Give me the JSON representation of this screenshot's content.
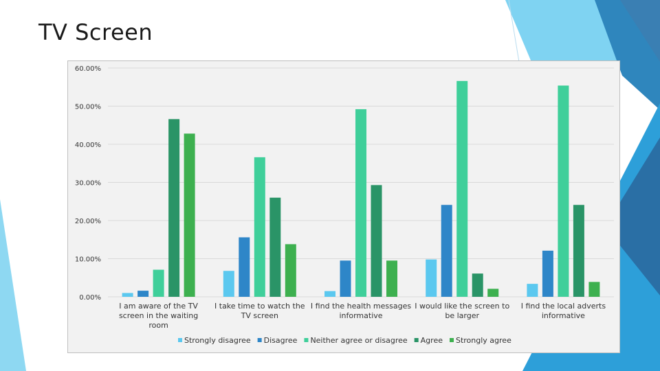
{
  "slide": {
    "title": "TV Screen"
  },
  "chart_data": {
    "type": "bar",
    "title": "",
    "xlabel": "",
    "ylabel": "",
    "ylim": [
      0,
      60
    ],
    "yticks": [
      {
        "value": 0,
        "label": "0.00%"
      },
      {
        "value": 10,
        "label": "10.00%"
      },
      {
        "value": 20,
        "label": "20.00%"
      },
      {
        "value": 30,
        "label": "30.00%"
      },
      {
        "value": 40,
        "label": "40.00%"
      },
      {
        "value": 50,
        "label": "50.00%"
      },
      {
        "value": 60,
        "label": "60.00%"
      }
    ],
    "grid": true,
    "legend_position": "bottom",
    "categories": [
      [
        "I am aware of the TV",
        "screen in the waiting",
        "room"
      ],
      [
        "I take time to watch the",
        "TV screen"
      ],
      [
        "I find the health messages",
        "informative"
      ],
      [
        "I would like the screen to",
        "be larger"
      ],
      [
        "I find the local adverts",
        "informative"
      ]
    ],
    "series": [
      {
        "name": "Strongly disagree",
        "color": "#5bc8ef",
        "values": [
          1.0,
          6.8,
          1.5,
          9.8,
          3.4
        ]
      },
      {
        "name": "Disagree",
        "color": "#2e86c8",
        "values": [
          1.6,
          15.6,
          9.5,
          24.1,
          12.1
        ]
      },
      {
        "name": "Neither agree or disagree",
        "color": "#3fcf9a",
        "values": [
          7.1,
          36.6,
          49.2,
          56.6,
          55.4
        ]
      },
      {
        "name": "Agree",
        "color": "#2a9467",
        "values": [
          46.6,
          26.0,
          29.3,
          6.1,
          24.1
        ]
      },
      {
        "name": "Strongly agree",
        "color": "#3db04f",
        "values": [
          42.8,
          13.8,
          9.5,
          2.1,
          3.9
        ]
      }
    ]
  }
}
